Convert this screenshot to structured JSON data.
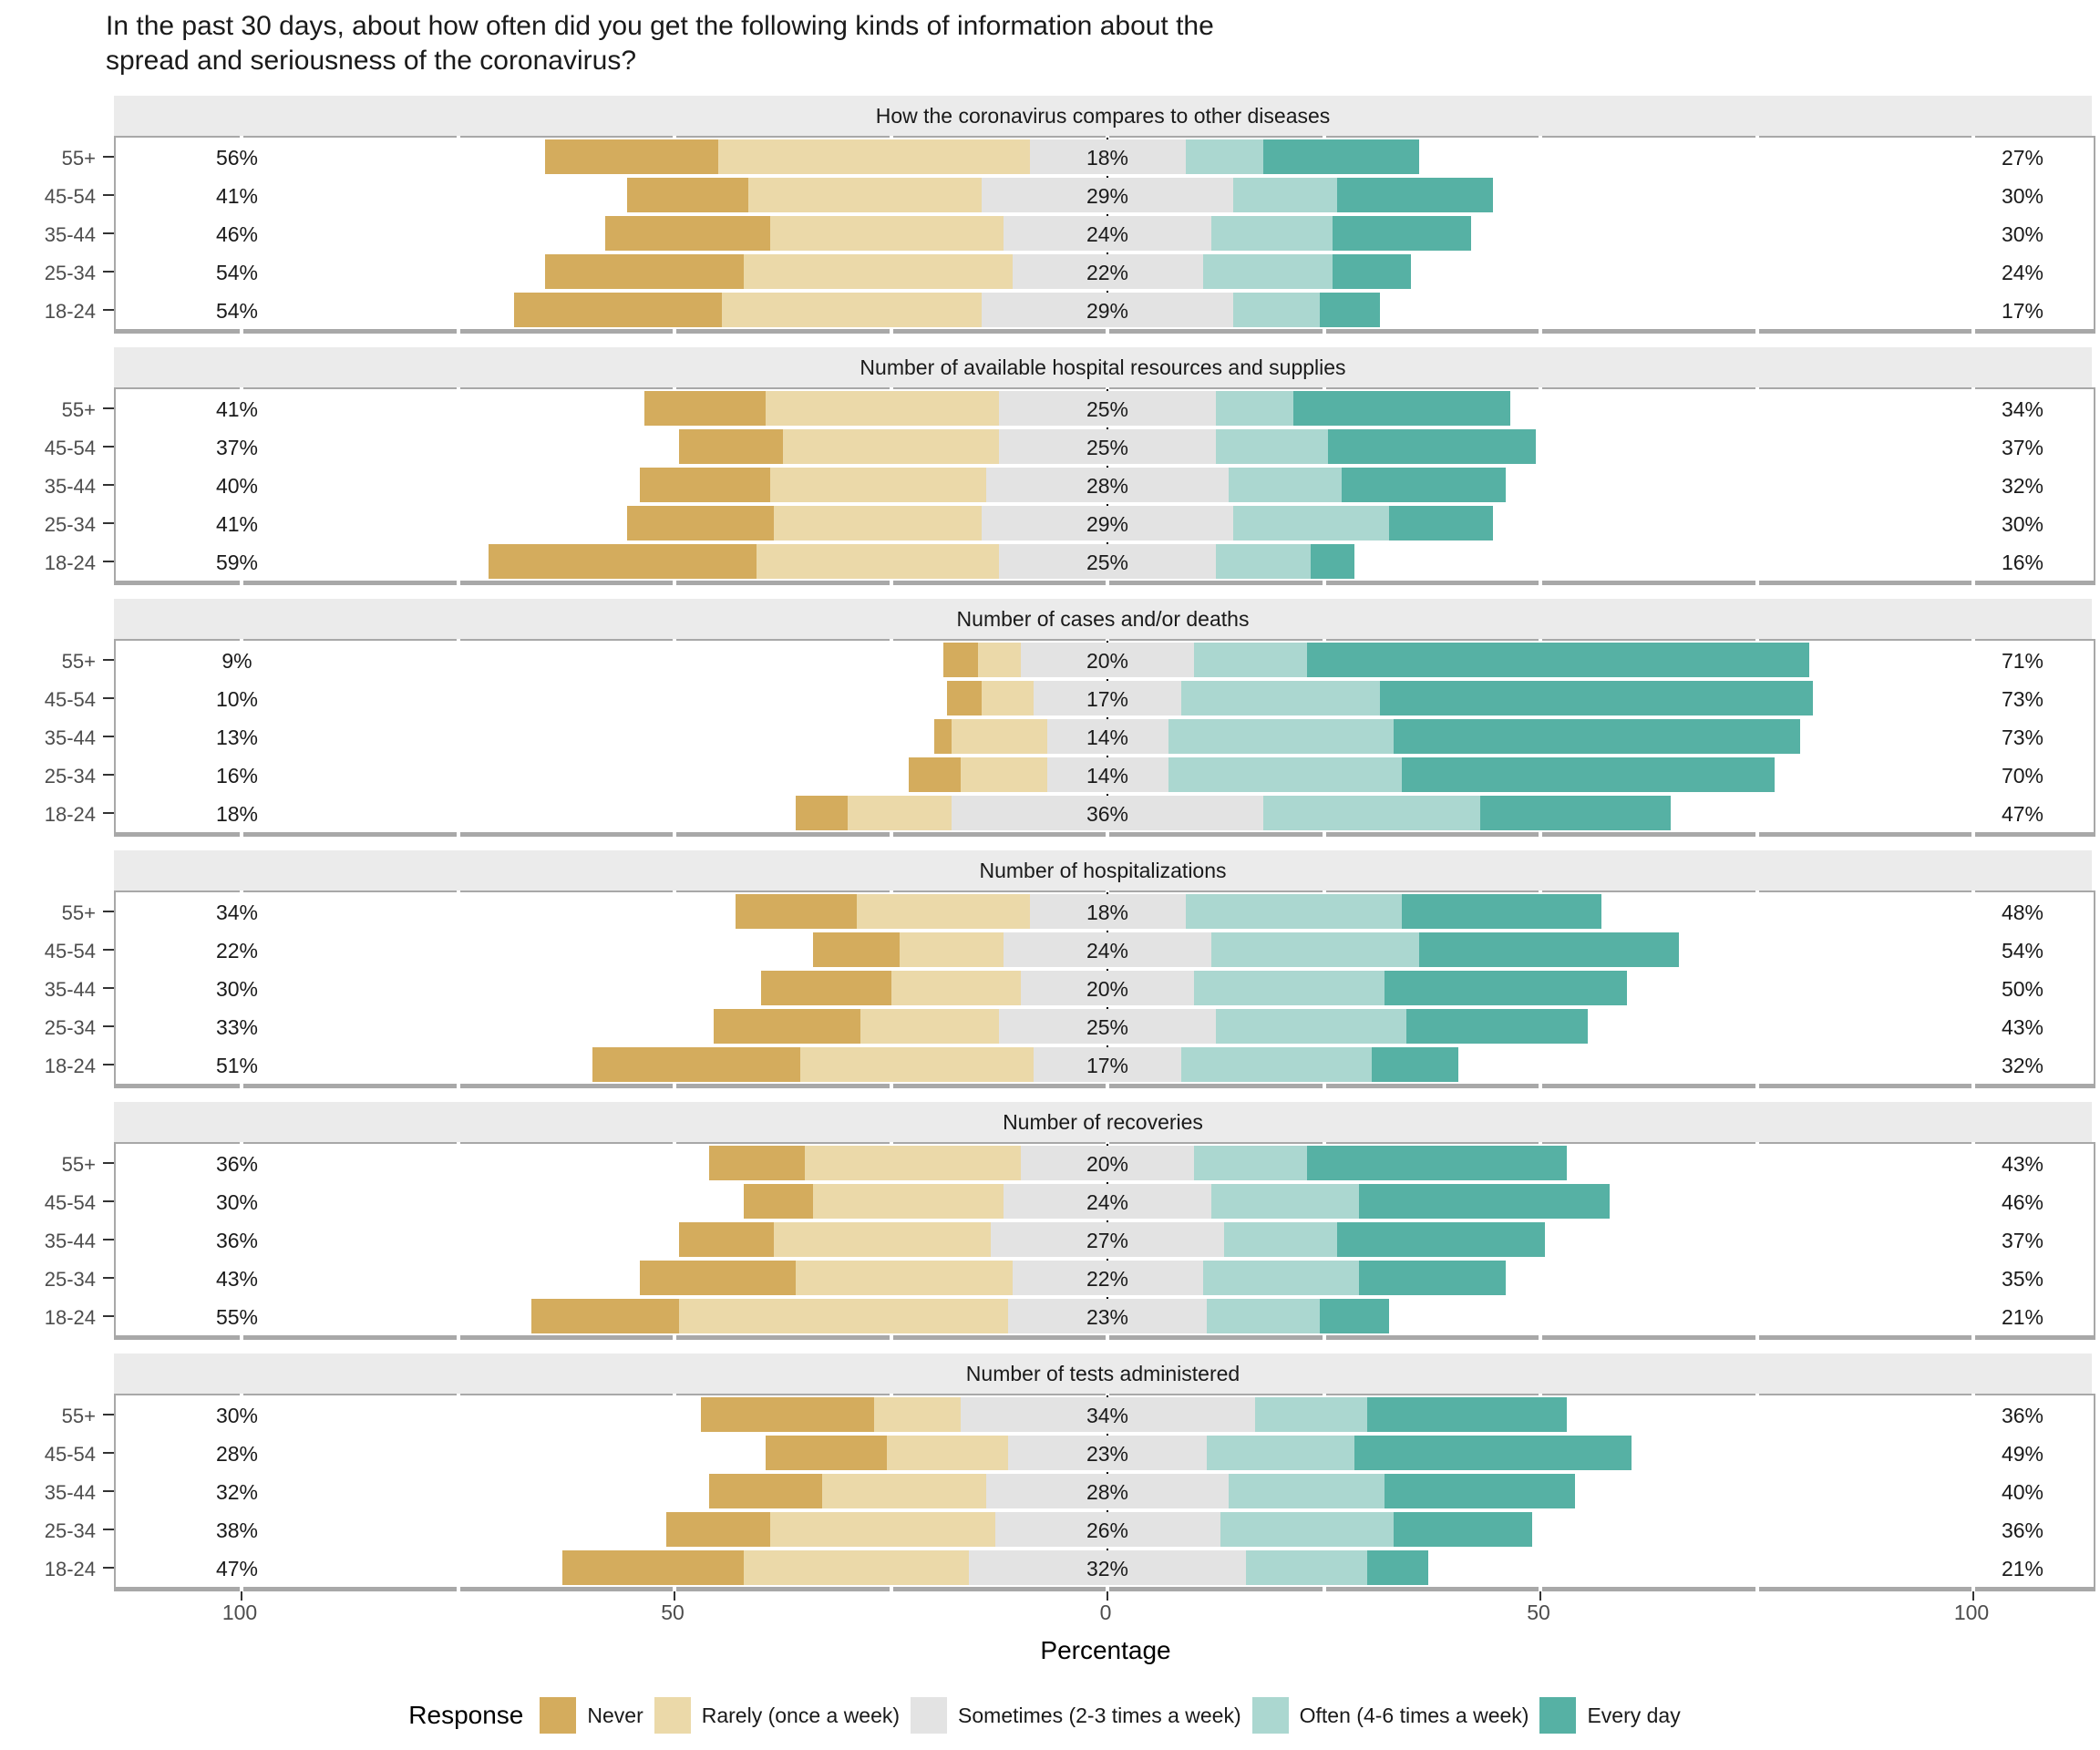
{
  "title_lines": [
    "In the past 30 days, about how often did you get the following kinds of information about the",
    "spread and seriousness of the coronavirus?"
  ],
  "axis": {
    "title": "Percentage",
    "tick_labels": [
      "100",
      "50",
      "0",
      "50",
      "100"
    ],
    "tick_values": [
      -100,
      -50,
      0,
      50,
      100
    ]
  },
  "legend": {
    "title": "Response",
    "items": [
      {
        "key": "never",
        "label": "Never",
        "color": "#D4AC5D"
      },
      {
        "key": "rarely",
        "label": "Rarely (once a week)",
        "color": "#EBD9A9"
      },
      {
        "key": "sometimes",
        "label": "Sometimes (2-3 times a week)",
        "color": "#E3E3E3"
      },
      {
        "key": "often",
        "label": "Often (4-6 times a week)",
        "color": "#ABD7D0"
      },
      {
        "key": "everyday",
        "label": "Every day",
        "color": "#56B1A4"
      }
    ]
  },
  "chart_data": {
    "type": "bar",
    "stacking": "diverging",
    "orientation": "horizontal",
    "categories": [
      "55+",
      "45-54",
      "35-44",
      "25-34",
      "18-24"
    ],
    "series_names": [
      "Never",
      "Rarely (once a week)",
      "Sometimes (2-3 times a week)",
      "Often (4-6 times a week)",
      "Every day"
    ],
    "xlabel": "Percentage",
    "xlim": [
      -100,
      100
    ],
    "grid": false,
    "legend_position": "bottom",
    "facets": [
      {
        "title": "How the coronavirus compares to other diseases",
        "rows": [
          {
            "age": "55+",
            "segments": {
              "never": 20,
              "rarely": 36,
              "sometimes": 18,
              "often": 9,
              "everyday": 18
            },
            "labels": {
              "left": "56%",
              "center": "18%",
              "right": "27%"
            }
          },
          {
            "age": "45-54",
            "segments": {
              "never": 14,
              "rarely": 27,
              "sometimes": 29,
              "often": 12,
              "everyday": 18
            },
            "labels": {
              "left": "41%",
              "center": "29%",
              "right": "30%"
            }
          },
          {
            "age": "35-44",
            "segments": {
              "never": 19,
              "rarely": 27,
              "sometimes": 24,
              "often": 14,
              "everyday": 16
            },
            "labels": {
              "left": "46%",
              "center": "24%",
              "right": "30%"
            }
          },
          {
            "age": "25-34",
            "segments": {
              "never": 23,
              "rarely": 31,
              "sometimes": 22,
              "often": 15,
              "everyday": 9
            },
            "labels": {
              "left": "54%",
              "center": "22%",
              "right": "24%"
            }
          },
          {
            "age": "18-24",
            "segments": {
              "never": 24,
              "rarely": 30,
              "sometimes": 29,
              "often": 10,
              "everyday": 7
            },
            "labels": {
              "left": "54%",
              "center": "29%",
              "right": "17%"
            }
          }
        ]
      },
      {
        "title": "Number of available hospital resources and supplies",
        "rows": [
          {
            "age": "55+",
            "segments": {
              "never": 14,
              "rarely": 27,
              "sometimes": 25,
              "often": 9,
              "everyday": 25
            },
            "labels": {
              "left": "41%",
              "center": "25%",
              "right": "34%"
            }
          },
          {
            "age": "45-54",
            "segments": {
              "never": 12,
              "rarely": 25,
              "sometimes": 25,
              "often": 13,
              "everyday": 24
            },
            "labels": {
              "left": "37%",
              "center": "25%",
              "right": "37%"
            }
          },
          {
            "age": "35-44",
            "segments": {
              "never": 15,
              "rarely": 25,
              "sometimes": 28,
              "often": 13,
              "everyday": 19
            },
            "labels": {
              "left": "40%",
              "center": "28%",
              "right": "32%"
            }
          },
          {
            "age": "25-34",
            "segments": {
              "never": 17,
              "rarely": 24,
              "sometimes": 29,
              "often": 18,
              "everyday": 12
            },
            "labels": {
              "left": "41%",
              "center": "29%",
              "right": "30%"
            }
          },
          {
            "age": "18-24",
            "segments": {
              "never": 31,
              "rarely": 28,
              "sometimes": 25,
              "often": 11,
              "everyday": 5
            },
            "labels": {
              "left": "59%",
              "center": "25%",
              "right": "16%"
            }
          }
        ]
      },
      {
        "title": "Number of cases and/or deaths",
        "rows": [
          {
            "age": "55+",
            "segments": {
              "never": 4,
              "rarely": 5,
              "sometimes": 20,
              "often": 13,
              "everyday": 58
            },
            "labels": {
              "left": "9%",
              "center": "20%",
              "right": "71%"
            }
          },
          {
            "age": "45-54",
            "segments": {
              "never": 4,
              "rarely": 6,
              "sometimes": 17,
              "often": 23,
              "everyday": 50
            },
            "labels": {
              "left": "10%",
              "center": "17%",
              "right": "73%"
            }
          },
          {
            "age": "35-44",
            "segments": {
              "never": 2,
              "rarely": 11,
              "sometimes": 14,
              "often": 26,
              "everyday": 47
            },
            "labels": {
              "left": "13%",
              "center": "14%",
              "right": "73%"
            }
          },
          {
            "age": "25-34",
            "segments": {
              "never": 6,
              "rarely": 10,
              "sometimes": 14,
              "often": 27,
              "everyday": 43
            },
            "labels": {
              "left": "16%",
              "center": "14%",
              "right": "70%"
            }
          },
          {
            "age": "18-24",
            "segments": {
              "never": 6,
              "rarely": 12,
              "sometimes": 36,
              "often": 25,
              "everyday": 22
            },
            "labels": {
              "left": "18%",
              "center": "36%",
              "right": "47%"
            }
          }
        ]
      },
      {
        "title": "Number of hospitalizations",
        "rows": [
          {
            "age": "55+",
            "segments": {
              "never": 14,
              "rarely": 20,
              "sometimes": 18,
              "often": 25,
              "everyday": 23
            },
            "labels": {
              "left": "34%",
              "center": "18%",
              "right": "48%"
            }
          },
          {
            "age": "45-54",
            "segments": {
              "never": 10,
              "rarely": 12,
              "sometimes": 24,
              "often": 24,
              "everyday": 30
            },
            "labels": {
              "left": "22%",
              "center": "24%",
              "right": "54%"
            }
          },
          {
            "age": "35-44",
            "segments": {
              "never": 15,
              "rarely": 15,
              "sometimes": 20,
              "often": 22,
              "everyday": 28
            },
            "labels": {
              "left": "30%",
              "center": "20%",
              "right": "50%"
            }
          },
          {
            "age": "25-34",
            "segments": {
              "never": 17,
              "rarely": 16,
              "sometimes": 25,
              "often": 22,
              "everyday": 21
            },
            "labels": {
              "left": "33%",
              "center": "25%",
              "right": "43%"
            }
          },
          {
            "age": "18-24",
            "segments": {
              "never": 24,
              "rarely": 27,
              "sometimes": 17,
              "often": 22,
              "everyday": 10
            },
            "labels": {
              "left": "51%",
              "center": "17%",
              "right": "32%"
            }
          }
        ]
      },
      {
        "title": "Number of recoveries",
        "rows": [
          {
            "age": "55+",
            "segments": {
              "never": 11,
              "rarely": 25,
              "sometimes": 20,
              "often": 13,
              "everyday": 30
            },
            "labels": {
              "left": "36%",
              "center": "20%",
              "right": "43%"
            }
          },
          {
            "age": "45-54",
            "segments": {
              "never": 8,
              "rarely": 22,
              "sometimes": 24,
              "often": 17,
              "everyday": 29
            },
            "labels": {
              "left": "30%",
              "center": "24%",
              "right": "46%"
            }
          },
          {
            "age": "35-44",
            "segments": {
              "never": 11,
              "rarely": 25,
              "sometimes": 27,
              "often": 13,
              "everyday": 24
            },
            "labels": {
              "left": "36%",
              "center": "27%",
              "right": "37%"
            }
          },
          {
            "age": "25-34",
            "segments": {
              "never": 18,
              "rarely": 25,
              "sometimes": 22,
              "often": 18,
              "everyday": 17
            },
            "labels": {
              "left": "43%",
              "center": "22%",
              "right": "35%"
            }
          },
          {
            "age": "18-24",
            "segments": {
              "never": 17,
              "rarely": 38,
              "sometimes": 23,
              "often": 13,
              "everyday": 8
            },
            "labels": {
              "left": "55%",
              "center": "23%",
              "right": "21%"
            }
          }
        ]
      },
      {
        "title": "Number of tests administered",
        "rows": [
          {
            "age": "55+",
            "segments": {
              "never": 20,
              "rarely": 10,
              "sometimes": 34,
              "often": 13,
              "everyday": 23
            },
            "labels": {
              "left": "30%",
              "center": "34%",
              "right": "36%"
            }
          },
          {
            "age": "45-54",
            "segments": {
              "never": 14,
              "rarely": 14,
              "sometimes": 23,
              "often": 17,
              "everyday": 32
            },
            "labels": {
              "left": "28%",
              "center": "23%",
              "right": "49%"
            }
          },
          {
            "age": "35-44",
            "segments": {
              "never": 13,
              "rarely": 19,
              "sometimes": 28,
              "often": 18,
              "everyday": 22
            },
            "labels": {
              "left": "32%",
              "center": "28%",
              "right": "40%"
            }
          },
          {
            "age": "25-34",
            "segments": {
              "never": 12,
              "rarely": 26,
              "sometimes": 26,
              "often": 20,
              "everyday": 16
            },
            "labels": {
              "left": "38%",
              "center": "26%",
              "right": "36%"
            }
          },
          {
            "age": "18-24",
            "segments": {
              "never": 21,
              "rarely": 26,
              "sometimes": 32,
              "often": 14,
              "everyday": 7
            },
            "labels": {
              "left": "47%",
              "center": "32%",
              "right": "21%"
            }
          }
        ]
      }
    ]
  }
}
